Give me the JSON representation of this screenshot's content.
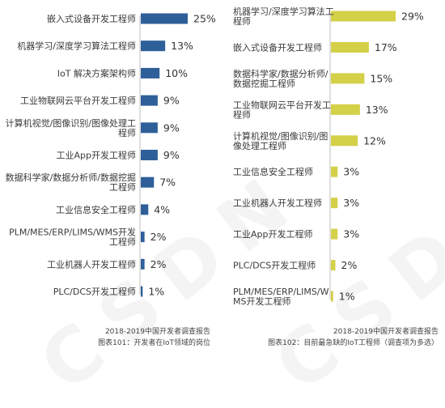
{
  "chart_data": [
    {
      "type": "bar",
      "orientation": "horizontal",
      "color": "#2e5f99",
      "categories": [
        "嵌入式设备开发工程师",
        "机器学习/深度学习算法工程师",
        "IoT 解决方案架构师",
        "工业物联网云平台开发工程师",
        "计算机视觉/图像识别/图像处理工|程师",
        "工业App开发工程师",
        "数据科学家/数据分析师/数据挖掘|工程师",
        "工业信息安全工程师",
        "PLM/MES/ERP/LIMS/WMS开发|工程师",
        "工业机器人开发工程师",
        "PLC/DCS开发工程师"
      ],
      "values": [
        25,
        13,
        10,
        9,
        9,
        9,
        7,
        4,
        2,
        2,
        1
      ],
      "value_labels": [
        "25%",
        "13%",
        "10%",
        "9%",
        "9%",
        "9%",
        "7%",
        "4%",
        "2%",
        "2%",
        "1%"
      ],
      "unit": "%",
      "xlim": [
        0,
        25
      ],
      "grid": false
    },
    {
      "type": "bar",
      "orientation": "horizontal",
      "color": "#d4d048",
      "categories": [
        "机器学习/深度学习算法工|程师",
        "嵌入式设备开发工程师",
        "数据科学家/数据分析师/|数据挖掘工程师",
        "工业物联网云平台开发工|程师",
        "计算机视觉/图像识别/图|像处理工程师",
        "工业信息安全工程师",
        "工业机器人开发工程师",
        "工业App开发工程师",
        "PLC/DCS开发工程师",
        "PLM/MES/ERP/LIMS/W|MS开发工程师"
      ],
      "values": [
        29,
        17,
        15,
        13,
        12,
        3,
        3,
        3,
        2,
        1
      ],
      "value_labels": [
        "29%",
        "17%",
        "15%",
        "13%",
        "12%",
        "3%",
        "3%",
        "3%",
        "2%",
        "1%"
      ],
      "unit": "%",
      "xlim": [
        0,
        29
      ],
      "grid": false
    }
  ],
  "footers": {
    "left": {
      "source": "2018-2019中国开发者调查报告",
      "caption": "图表101：开发者在IoT领域的岗位"
    },
    "right": {
      "source": "2018-2019中国开发者调查报告",
      "caption": "图表102：目前最急缺的IoT工程师（调查项为多选）"
    }
  },
  "watermark": "CSDN"
}
